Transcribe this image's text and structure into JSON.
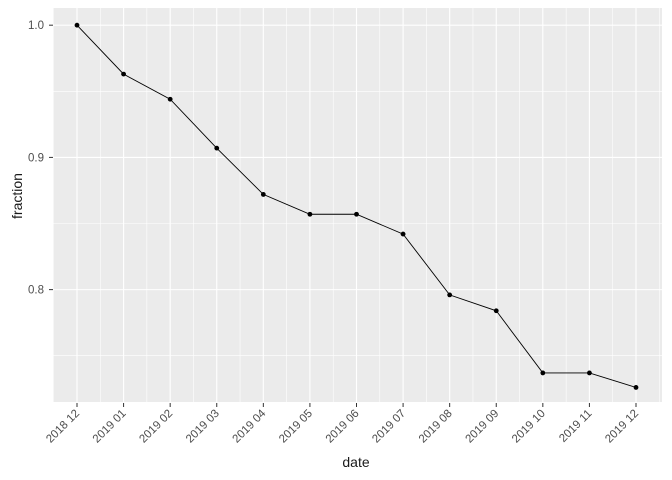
{
  "chart_data": {
    "type": "line",
    "title": "",
    "xlabel": "date",
    "ylabel": "fraction",
    "x": [
      "2018 12",
      "2019 01",
      "2019 02",
      "2019 03",
      "2019 04",
      "2019 05",
      "2019 06",
      "2019 07",
      "2019 08",
      "2019 09",
      "2019 10",
      "2019 11",
      "2019 12"
    ],
    "values": [
      1.0,
      0.963,
      0.944,
      0.907,
      0.872,
      0.857,
      0.857,
      0.842,
      0.796,
      0.784,
      0.737,
      0.737,
      0.726
    ],
    "y_major_ticks": [
      1.0,
      0.9,
      0.8
    ],
    "y_minor_ticks": [
      0.95,
      0.85,
      0.75
    ],
    "ylim": [
      0.715,
      1.013
    ],
    "grid": "major-and-minor",
    "legend_position": "none",
    "x_tick_angle_deg": 45,
    "colors": {
      "panel_background": "#EBEBEB",
      "grid": "#FFFFFF",
      "line": "#000000",
      "point": "#000000",
      "tick_mark": "#333333",
      "tick_label": "#4D4D4D",
      "axis_title": "#1A1A1A",
      "figure_background": "#FFFFFF"
    }
  }
}
